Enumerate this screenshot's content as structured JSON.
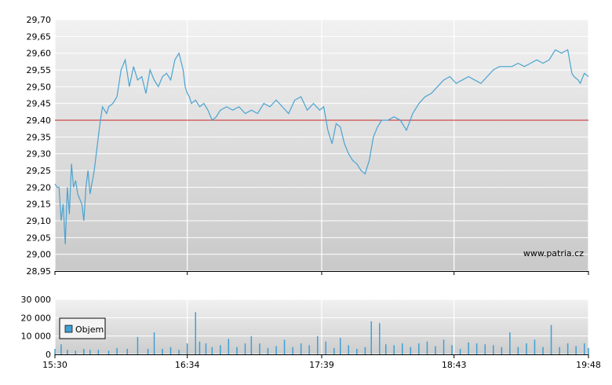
{
  "watermark": "www.patria.cz",
  "colors": {
    "price_line": "#4aa3d1",
    "reference_line": "#cc2222",
    "volume_bar": "#3f9fd3",
    "grid": "#ffffff",
    "axis": "#000000"
  },
  "chart_data": [
    {
      "type": "line",
      "title": "",
      "xlabel": "",
      "ylabel": "",
      "x_range": [
        "15:30",
        "19:48"
      ],
      "x_ticks": [
        "15:30",
        "16:34",
        "17:39",
        "18:43",
        "19:48"
      ],
      "ylim": [
        28.95,
        29.7
      ],
      "y_ticks": [
        "29,70",
        "29,65",
        "29,60",
        "29,55",
        "29,50",
        "29,45",
        "29,40",
        "29,35",
        "29,30",
        "29,25",
        "29,20",
        "29,15",
        "29,10",
        "29,05",
        "29,00",
        "28,95"
      ],
      "reference_line": 29.4,
      "grid": true,
      "series": [
        {
          "x": [
            "15:30",
            "15:31",
            "15:32",
            "15:33",
            "15:34",
            "15:35",
            "15:36",
            "15:37",
            "15:38",
            "15:39",
            "15:40",
            "15:41",
            "15:43",
            "15:44",
            "15:45",
            "15:46",
            "15:47",
            "15:49",
            "15:50",
            "15:51",
            "15:52",
            "15:53",
            "15:55",
            "15:56",
            "15:58",
            "16:00",
            "16:02",
            "16:04",
            "16:06",
            "16:08",
            "16:10",
            "16:12",
            "16:14",
            "16:16",
            "16:18",
            "16:20",
            "16:22",
            "16:24",
            "16:26",
            "16:28",
            "16:30",
            "16:32",
            "16:33",
            "16:34",
            "16:35",
            "16:36",
            "16:38",
            "16:40",
            "16:42",
            "16:44",
            "16:46",
            "16:48",
            "16:50",
            "16:53",
            "16:56",
            "16:59",
            "17:02",
            "17:05",
            "17:08",
            "17:11",
            "17:14",
            "17:17",
            "17:20",
            "17:23",
            "17:26",
            "17:29",
            "17:32",
            "17:35",
            "17:38",
            "17:40",
            "17:42",
            "17:44",
            "17:46",
            "17:48",
            "17:50",
            "17:52",
            "17:54",
            "17:56",
            "17:58",
            "18:00",
            "18:02",
            "18:04",
            "18:06",
            "18:08",
            "18:11",
            "18:14",
            "18:17",
            "18:20",
            "18:23",
            "18:26",
            "18:29",
            "18:32",
            "18:35",
            "18:38",
            "18:41",
            "18:44",
            "18:47",
            "18:50",
            "18:53",
            "18:56",
            "18:59",
            "19:02",
            "19:05",
            "19:08",
            "19:11",
            "19:14",
            "19:17",
            "19:20",
            "19:23",
            "19:26",
            "19:29",
            "19:32",
            "19:35",
            "19:38",
            "19:40",
            "19:41",
            "19:43",
            "19:44",
            "19:46",
            "19:48"
          ],
          "values": [
            29.21,
            29.2,
            29.2,
            29.1,
            29.15,
            29.03,
            29.2,
            29.12,
            29.27,
            29.2,
            29.22,
            29.18,
            29.15,
            29.1,
            29.2,
            29.25,
            29.18,
            29.25,
            29.3,
            29.35,
            29.4,
            29.44,
            29.42,
            29.44,
            29.45,
            29.47,
            29.55,
            29.58,
            29.5,
            29.56,
            29.52,
            29.53,
            29.48,
            29.55,
            29.52,
            29.5,
            29.53,
            29.54,
            29.52,
            29.58,
            29.6,
            29.55,
            29.5,
            29.48,
            29.47,
            29.45,
            29.46,
            29.44,
            29.45,
            29.43,
            29.4,
            29.41,
            29.43,
            29.44,
            29.43,
            29.44,
            29.42,
            29.43,
            29.42,
            29.45,
            29.44,
            29.46,
            29.44,
            29.42,
            29.46,
            29.47,
            29.43,
            29.45,
            29.43,
            29.44,
            29.37,
            29.33,
            29.39,
            29.38,
            29.33,
            29.3,
            29.28,
            29.27,
            29.25,
            29.24,
            29.28,
            29.35,
            29.38,
            29.4,
            29.4,
            29.41,
            29.4,
            29.37,
            29.42,
            29.45,
            29.47,
            29.48,
            29.5,
            29.52,
            29.53,
            29.51,
            29.52,
            29.53,
            29.52,
            29.51,
            29.53,
            29.55,
            29.56,
            29.56,
            29.56,
            29.57,
            29.56,
            29.57,
            29.58,
            29.57,
            29.58,
            29.61,
            29.6,
            29.61,
            29.54,
            29.53,
            29.52,
            29.51,
            29.54,
            29.53
          ]
        }
      ]
    },
    {
      "type": "bar",
      "title": "",
      "xlabel": "",
      "ylabel": "",
      "ylim": [
        0,
        30000
      ],
      "y_ticks": [
        "30 000",
        "20 000",
        "10 000",
        "0"
      ],
      "x_ticks": [
        "15:30",
        "16:34",
        "17:39",
        "18:43",
        "19:48"
      ],
      "legend": {
        "entries": [
          "Objem"
        ],
        "placement": "top-left"
      },
      "grid": true,
      "series": [
        {
          "name": "Objem",
          "x": [
            "15:30",
            "15:33",
            "15:36",
            "15:40",
            "15:44",
            "15:47",
            "15:51",
            "15:56",
            "16:00",
            "16:05",
            "16:10",
            "16:15",
            "16:18",
            "16:22",
            "16:26",
            "16:30",
            "16:34",
            "16:38",
            "16:40",
            "16:43",
            "16:46",
            "16:50",
            "16:54",
            "16:58",
            "17:02",
            "17:05",
            "17:09",
            "17:13",
            "17:17",
            "17:21",
            "17:25",
            "17:29",
            "17:33",
            "17:37",
            "17:41",
            "17:45",
            "17:48",
            "17:52",
            "17:56",
            "18:00",
            "18:03",
            "18:07",
            "18:10",
            "18:14",
            "18:18",
            "18:22",
            "18:26",
            "18:30",
            "18:34",
            "18:38",
            "18:42",
            "18:46",
            "18:50",
            "18:54",
            "18:58",
            "19:02",
            "19:06",
            "19:10",
            "19:14",
            "19:18",
            "19:22",
            "19:26",
            "19:30",
            "19:34",
            "19:38",
            "19:42",
            "19:46",
            "19:48"
          ],
          "values": [
            3000,
            5500,
            2500,
            2000,
            3000,
            2500,
            2500,
            2000,
            3500,
            3000,
            9500,
            3000,
            12000,
            3000,
            4000,
            2500,
            6000,
            23000,
            7000,
            6000,
            4000,
            5000,
            8500,
            4000,
            6000,
            10000,
            6000,
            3500,
            4500,
            8000,
            4000,
            6000,
            5000,
            10000,
            7000,
            3500,
            9000,
            5000,
            3000,
            4000,
            18000,
            17000,
            5500,
            5000,
            6000,
            4000,
            6000,
            7000,
            4500,
            8000,
            5000,
            3000,
            6500,
            6000,
            5500,
            5000,
            4000,
            12000,
            4000,
            6000,
            8000,
            4000,
            16000,
            4000,
            6000,
            4500,
            6000,
            3500
          ]
        }
      ]
    }
  ]
}
